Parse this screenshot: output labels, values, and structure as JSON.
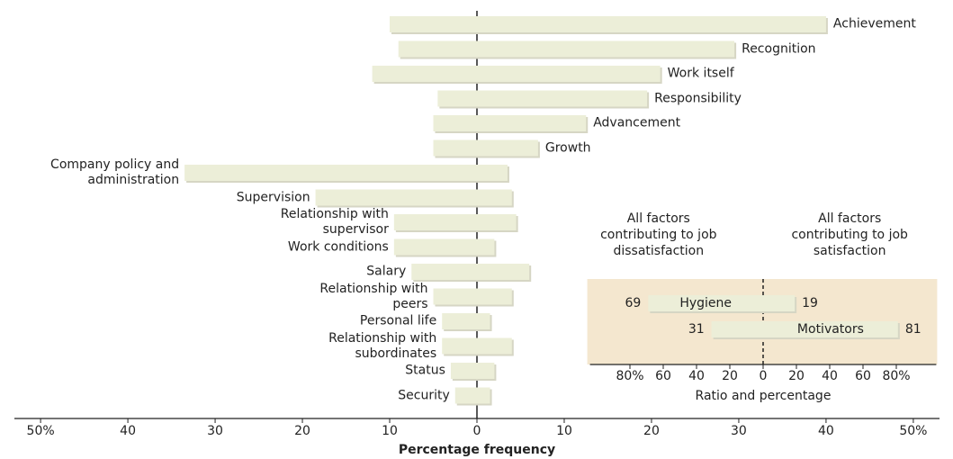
{
  "chart_data": [
    {
      "type": "diverging-bar",
      "categories": [
        "Achievement",
        "Recognition",
        "Work itself",
        "Responsibility",
        "Advancement",
        "Growth",
        "Company policy and administration",
        "Supervision",
        "Relationship with supervisor",
        "Work conditions",
        "Salary",
        "Relationship with peers",
        "Personal life",
        "Relationship with subordinates",
        "Status",
        "Security"
      ],
      "series": [
        {
          "color": "#eceed8",
          "values": [
            -10,
            -9,
            -12,
            -4.5,
            -5,
            -5,
            -33.5,
            -18.5,
            -9.5,
            -9.5,
            -7.5,
            -5,
            -4,
            -4,
            -3,
            -2.5
          ]
        },
        {
          "color": "#eceed8",
          "values": [
            40,
            29.5,
            21,
            19.5,
            12.5,
            7,
            3.5,
            4,
            4.5,
            2,
            6,
            4,
            1.5,
            4,
            2,
            1.5
          ]
        }
      ],
      "xlim": [
        -53,
        53
      ],
      "xticks": [
        {
          "value": -50,
          "label": "50%"
        },
        {
          "value": -40,
          "label": "40"
        },
        {
          "value": -30,
          "label": "30"
        },
        {
          "value": -20,
          "label": "20"
        },
        {
          "value": -10,
          "label": "10"
        },
        0,
        10,
        20,
        30,
        40,
        {
          "value": 50,
          "label": "50%"
        }
      ],
      "xlabel": "Percentage frequency"
    },
    {
      "type": "diverging-bar",
      "categories": [
        "Hygiene",
        "Motivators"
      ],
      "series": [
        {
          "name": "All factors contributing to job dissatisfaction",
          "color": "#eceed8",
          "values": [
            -69,
            -31
          ],
          "value_labels": [
            "69",
            "31"
          ]
        },
        {
          "name": "All factors contributing to job satisfaction",
          "color": "#eceed8",
          "values": [
            19,
            81
          ]
        }
      ],
      "xlim": [
        -104,
        104
      ],
      "xticks": [
        {
          "value": -80,
          "label": "80%"
        },
        {
          "value": -60,
          "label": "60"
        },
        {
          "value": -40,
          "label": "40"
        },
        {
          "value": -20,
          "label": "20"
        },
        0,
        20,
        40,
        60,
        {
          "value": 80,
          "label": "80%"
        }
      ],
      "xlabel": "Ratio and percentage",
      "background": "#f4e7cf"
    }
  ]
}
